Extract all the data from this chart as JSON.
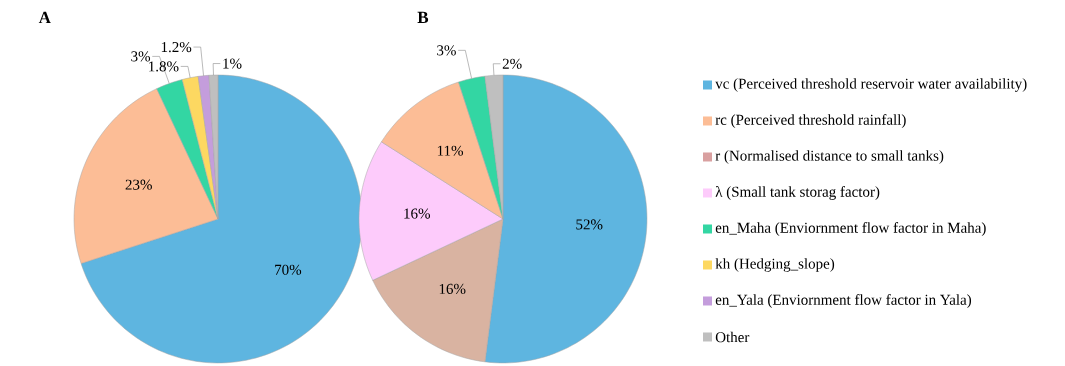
{
  "chart_data": [
    {
      "type": "pie",
      "title": "A",
      "categories": [
        null,
        null,
        null,
        null,
        null,
        null
      ],
      "values": [
        70,
        23,
        3,
        1.8,
        1.2,
        1
      ],
      "colors": [
        "#5eb5e0",
        "#fcbd96",
        "#33d6a3",
        "#fdd861",
        "#c49ddc",
        "#bfbfbf"
      ],
      "value_labels": [
        "70%",
        "23%",
        "3%",
        "1.8%",
        "1.2%",
        "1%"
      ]
    },
    {
      "type": "pie",
      "title": "B",
      "categories": [
        null,
        null,
        null,
        null,
        null,
        null
      ],
      "values": [
        52,
        16,
        16,
        11,
        3,
        2
      ],
      "colors": [
        "#5eb5e0",
        "#d9b3a1",
        "#fdcbfb",
        "#fcbd96",
        "#33d6a3",
        "#bfbfbf"
      ],
      "value_labels": [
        "52%",
        "16%",
        "16%",
        "11%",
        "3%",
        "2%"
      ]
    },
    {
      "type": "other",
      "categories": [
        "vc (Perceived threshold reservoir water availability)",
        "rc (Perceived threshold rainfall)",
        "r (Normalised distance to small tanks)",
        "λ (Small tank storag factor)",
        "en_Maha (Enviornment flow factor in Maha)",
        "kh (Hedging_slope)",
        "en_Yala (Enviornment flow factor in Yala)",
        "Other"
      ],
      "colors": [
        "#5eb5e0",
        "#fcbd96",
        "#d9a0a0",
        "#fdcbfb",
        "#33d6a3",
        "#fdd861",
        "#c49ddc",
        "#bfbfbf"
      ]
    }
  ]
}
